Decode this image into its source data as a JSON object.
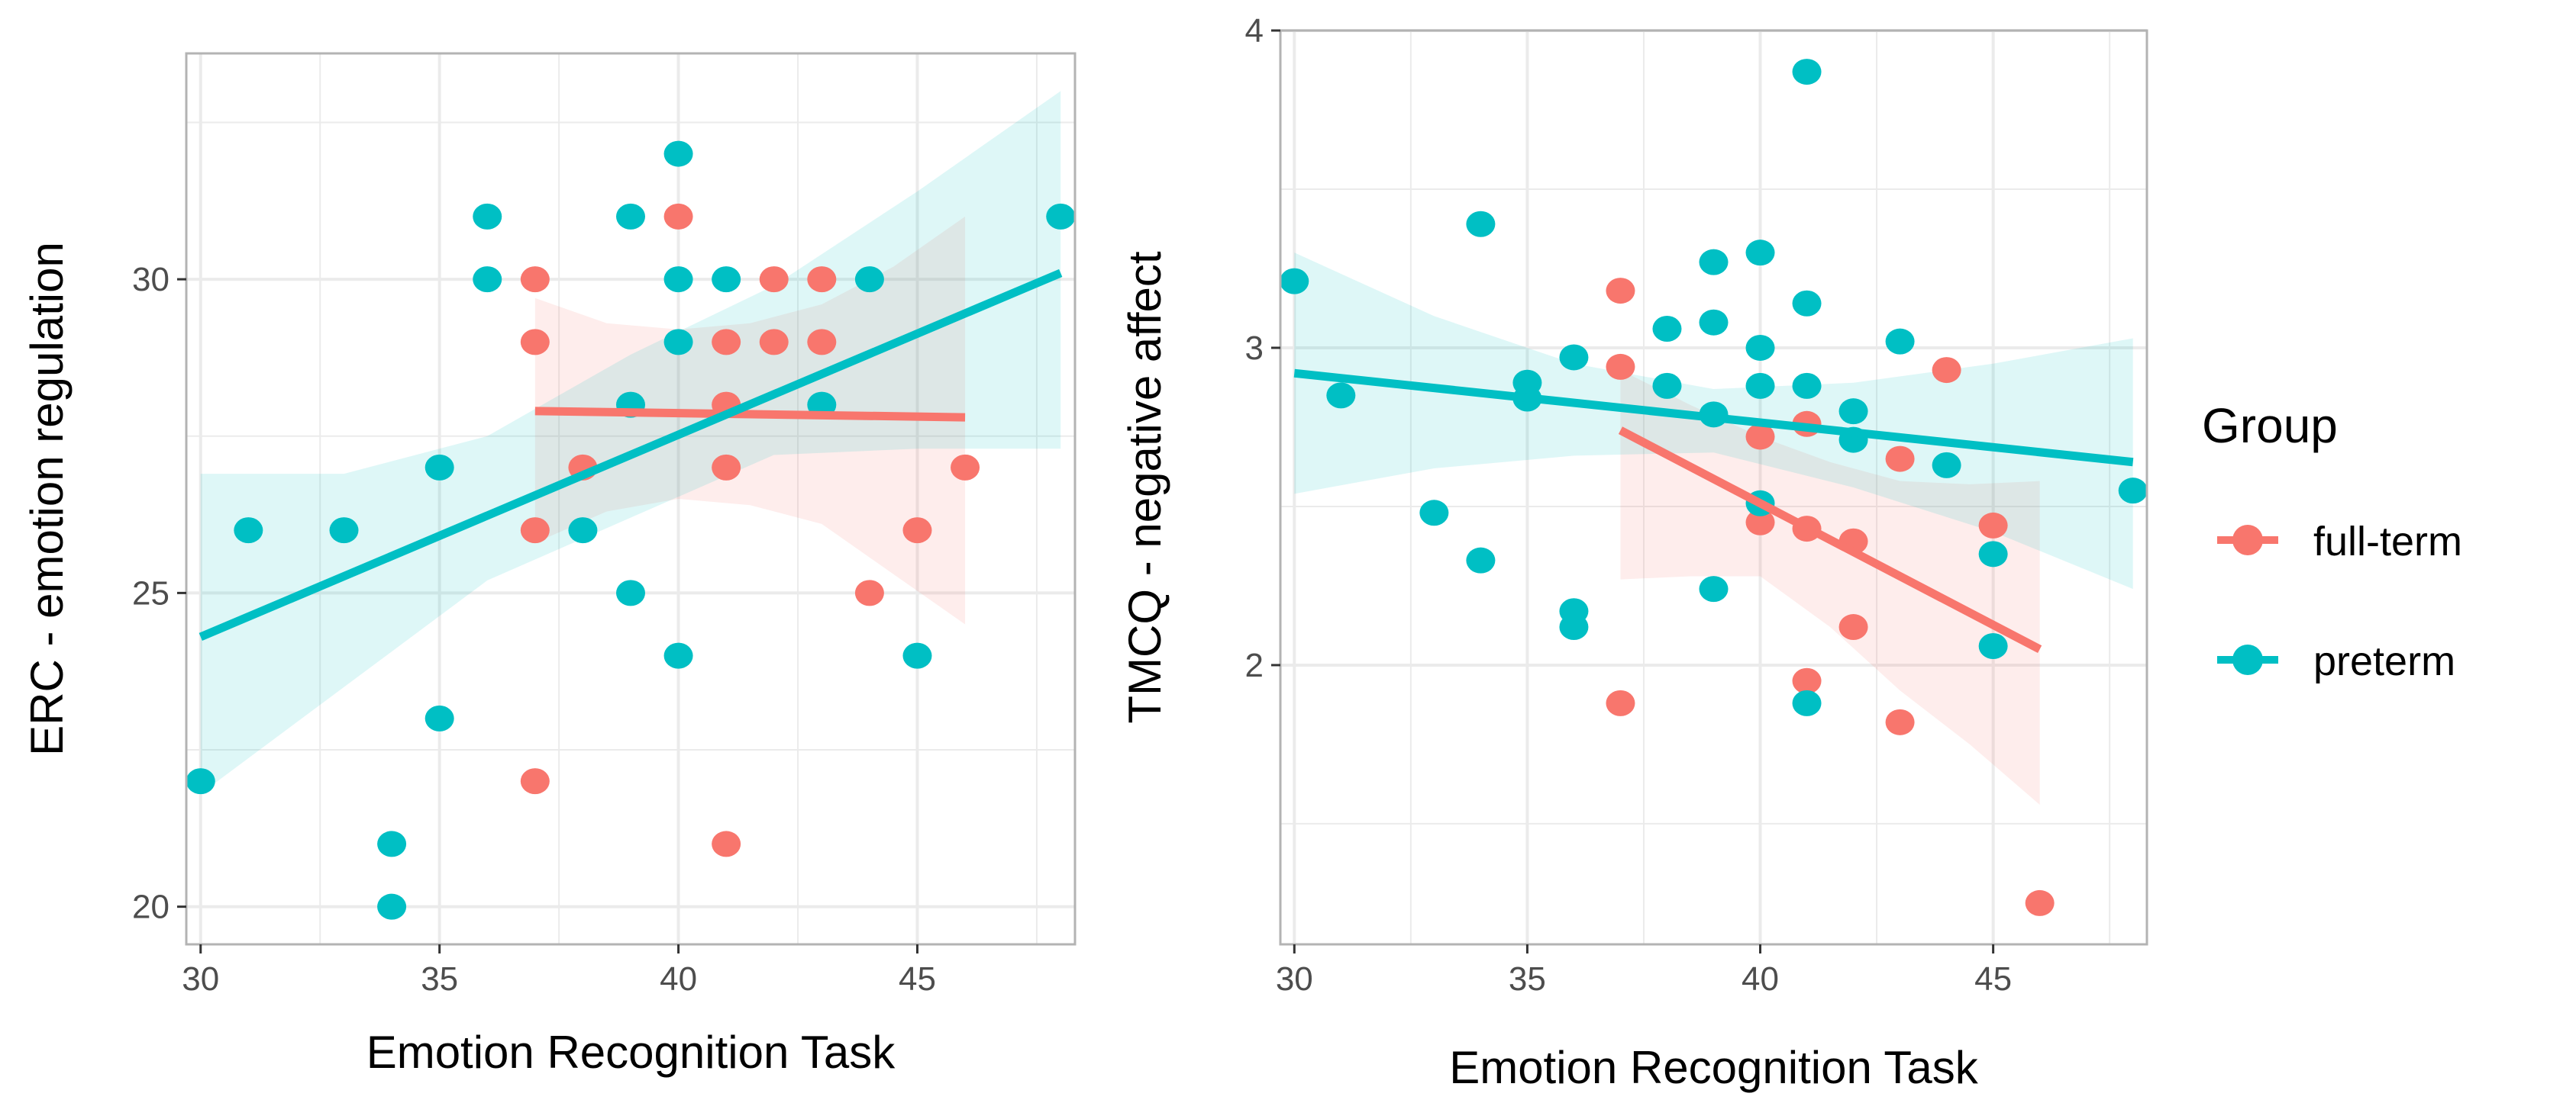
{
  "colors": {
    "full-term": "#F8766D",
    "preterm": "#00BFC4",
    "grid": "#ebebeb",
    "panel_border": "#b3b3b3"
  },
  "legend": {
    "title": "Group",
    "items": [
      {
        "key": "full-term",
        "label": "full-term"
      },
      {
        "key": "preterm",
        "label": "preterm"
      }
    ]
  },
  "chart_data": [
    {
      "type": "scatter",
      "xlabel": "Emotion Recognition Task",
      "ylabel": "ERC - emotion regulation",
      "xlim": [
        29.7,
        48.3
      ],
      "ylim": [
        19.4,
        33.6
      ],
      "xticks": [
        30,
        35,
        40,
        45
      ],
      "yticks": [
        20,
        25,
        30
      ],
      "xminor": [
        32.5,
        37.5,
        42.5,
        47.5
      ],
      "yminor": [
        22.5,
        27.5,
        32.5
      ],
      "series": [
        {
          "name": "full-term",
          "points": [
            [
              37,
              30
            ],
            [
              37,
              29
            ],
            [
              37,
              26
            ],
            [
              37,
              22
            ],
            [
              38,
              27
            ],
            [
              40,
              31
            ],
            [
              41,
              29
            ],
            [
              41,
              28
            ],
            [
              41,
              27
            ],
            [
              41,
              21
            ],
            [
              42,
              30
            ],
            [
              42,
              29
            ],
            [
              43,
              30
            ],
            [
              43,
              29
            ],
            [
              44,
              25
            ],
            [
              45,
              26
            ],
            [
              46,
              27
            ]
          ],
          "fit": {
            "x": [
              37,
              46
            ],
            "y": [
              27.9,
              27.8
            ]
          },
          "band": {
            "x": [
              37,
              38.5,
              40,
              41.5,
              43,
              44.5,
              46
            ],
            "upper": [
              29.7,
              29.3,
              29.2,
              29.3,
              29.6,
              30.2,
              31.0
            ],
            "lower": [
              25.8,
              26.3,
              26.5,
              26.4,
              26.1,
              25.3,
              24.5
            ]
          }
        },
        {
          "name": "preterm",
          "points": [
            [
              30,
              22
            ],
            [
              31,
              26
            ],
            [
              33,
              26
            ],
            [
              34,
              21
            ],
            [
              34,
              20
            ],
            [
              35,
              27
            ],
            [
              35,
              23
            ],
            [
              36,
              31
            ],
            [
              36,
              30
            ],
            [
              38,
              26
            ],
            [
              39,
              31
            ],
            [
              39,
              28
            ],
            [
              39,
              25
            ],
            [
              40,
              32
            ],
            [
              40,
              30
            ],
            [
              40,
              29
            ],
            [
              40,
              24
            ],
            [
              41,
              30
            ],
            [
              43,
              28
            ],
            [
              44,
              30
            ],
            [
              45,
              24
            ],
            [
              48,
              31
            ]
          ],
          "fit": {
            "x": [
              30,
              48
            ],
            "y": [
              24.3,
              30.1
            ]
          },
          "band": {
            "x": [
              30,
              33,
              36,
              39,
              42,
              45,
              48
            ],
            "upper": [
              26.9,
              26.9,
              27.5,
              28.8,
              29.9,
              31.4,
              33.0
            ],
            "lower": [
              21.8,
              23.5,
              25.2,
              26.2,
              27.2,
              27.3,
              27.3
            ]
          }
        }
      ]
    },
    {
      "type": "scatter",
      "xlabel": "Emotion Recognition Task",
      "ylabel": "TMCQ - negative affect",
      "xlim": [
        29.7,
        48.3
      ],
      "ylim": [
        1.12,
        4.0
      ],
      "xticks": [
        30,
        35,
        40,
        45
      ],
      "yticks": [
        2,
        3,
        4
      ],
      "xminor": [
        32.5,
        37.5,
        42.5,
        47.5
      ],
      "yminor": [
        1.5,
        2.5,
        3.5
      ],
      "series": [
        {
          "name": "full-term",
          "points": [
            [
              37,
              3.18
            ],
            [
              37,
              2.94
            ],
            [
              37,
              1.88
            ],
            [
              40,
              2.72
            ],
            [
              40,
              2.45
            ],
            [
              41,
              2.76
            ],
            [
              41,
              2.43
            ],
            [
              41,
              1.95
            ],
            [
              42,
              2.39
            ],
            [
              42,
              2.12
            ],
            [
              43,
              2.65
            ],
            [
              43,
              1.82
            ],
            [
              44,
              2.93
            ],
            [
              45,
              2.44
            ],
            [
              46,
              1.25
            ]
          ],
          "fit": {
            "x": [
              37,
              46
            ],
            "y": [
              2.74,
              2.05
            ]
          },
          "band": {
            "x": [
              37,
              38.5,
              40,
              41.5,
              43,
              44.5,
              46
            ],
            "upper": [
              2.93,
              2.82,
              2.72,
              2.64,
              2.58,
              2.57,
              2.58
            ],
            "lower": [
              2.27,
              2.28,
              2.28,
              2.12,
              1.92,
              1.75,
              1.56
            ]
          }
        },
        {
          "name": "preterm",
          "points": [
            [
              30,
              3.21
            ],
            [
              31,
              2.85
            ],
            [
              33,
              2.48
            ],
            [
              34,
              3.39
            ],
            [
              34,
              2.33
            ],
            [
              35,
              2.89
            ],
            [
              35,
              2.84
            ],
            [
              36,
              2.97
            ],
            [
              36,
              2.17
            ],
            [
              36,
              2.12
            ],
            [
              38,
              3.06
            ],
            [
              38,
              2.88
            ],
            [
              39,
              3.27
            ],
            [
              39,
              3.08
            ],
            [
              39,
              2.79
            ],
            [
              39,
              2.24
            ],
            [
              40,
              3.3
            ],
            [
              40,
              3.0
            ],
            [
              40,
              2.88
            ],
            [
              40,
              2.51
            ],
            [
              41,
              3.87
            ],
            [
              41,
              3.14
            ],
            [
              41,
              2.88
            ],
            [
              41,
              1.88
            ],
            [
              42,
              2.8
            ],
            [
              42,
              2.71
            ],
            [
              43,
              3.02
            ],
            [
              44,
              2.63
            ],
            [
              45,
              2.35
            ],
            [
              45,
              2.06
            ],
            [
              48,
              2.55
            ]
          ],
          "fit": {
            "x": [
              30,
              48
            ],
            "y": [
              2.92,
              2.64
            ]
          },
          "band": {
            "x": [
              30,
              33,
              36,
              39,
              42,
              45,
              48
            ],
            "upper": [
              3.3,
              3.1,
              2.95,
              2.87,
              2.89,
              2.95,
              3.03
            ],
            "lower": [
              2.54,
              2.62,
              2.66,
              2.67,
              2.56,
              2.42,
              2.24
            ]
          }
        }
      ]
    }
  ]
}
